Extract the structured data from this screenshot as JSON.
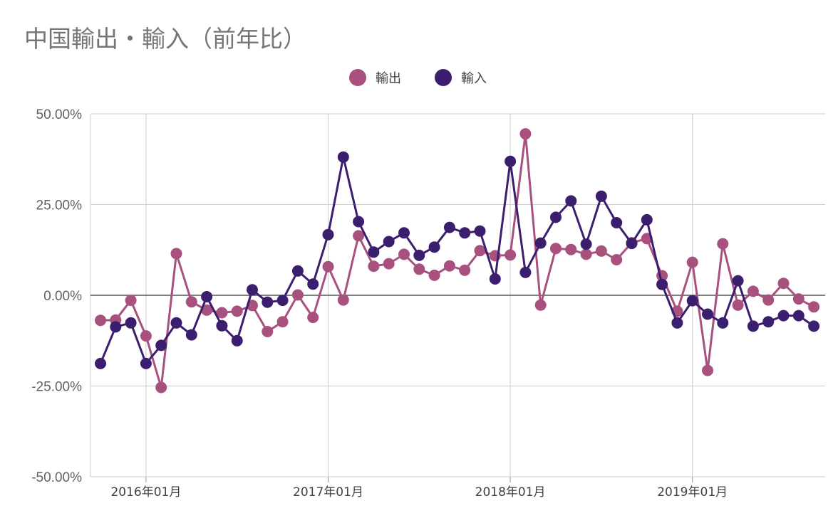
{
  "chart_data": {
    "type": "line",
    "title": "中国輸出・輸入（前年比）",
    "legend_position": "top",
    "grid": true,
    "ylim": [
      -50,
      50
    ],
    "y_ticks": [
      "50.00%",
      "25.00%",
      "0.00%",
      "-25.00%",
      "-50.00%"
    ],
    "y_tick_values": [
      50,
      25,
      0,
      -25,
      -50
    ],
    "x_ticks": [
      {
        "label": "2016年01月",
        "index": 3
      },
      {
        "label": "2017年01月",
        "index": 15
      },
      {
        "label": "2018年01月",
        "index": 27
      },
      {
        "label": "2019年01月",
        "index": 39
      }
    ],
    "categories": [
      "2015-10",
      "2015-11",
      "2015-12",
      "2016-01",
      "2016-02",
      "2016-03",
      "2016-04",
      "2016-05",
      "2016-06",
      "2016-07",
      "2016-08",
      "2016-09",
      "2016-10",
      "2016-11",
      "2016-12",
      "2017-01",
      "2017-02",
      "2017-03",
      "2017-04",
      "2017-05",
      "2017-06",
      "2017-07",
      "2017-08",
      "2017-09",
      "2017-10",
      "2017-11",
      "2017-12",
      "2018-01",
      "2018-02",
      "2018-03",
      "2018-04",
      "2018-05",
      "2018-06",
      "2018-07",
      "2018-08",
      "2018-09",
      "2018-10",
      "2018-11",
      "2018-12",
      "2019-01",
      "2019-02",
      "2019-03",
      "2019-04",
      "2019-05",
      "2019-06",
      "2019-07",
      "2019-08",
      "2019-09"
    ],
    "series": [
      {
        "name": "輸出",
        "color": "#a8507e",
        "values": [
          -6.9,
          -6.8,
          -1.4,
          -11.2,
          -25.4,
          11.5,
          -1.8,
          -4.1,
          -4.8,
          -4.4,
          -2.8,
          -10.0,
          -7.3,
          0.1,
          -6.1,
          7.9,
          -1.3,
          16.4,
          8.0,
          8.7,
          11.3,
          7.2,
          5.5,
          8.1,
          6.9,
          12.3,
          10.9,
          11.1,
          44.5,
          -2.7,
          12.9,
          12.6,
          11.3,
          12.2,
          9.8,
          14.5,
          15.6,
          5.4,
          -4.4,
          9.1,
          -20.7,
          14.2,
          -2.7,
          1.1,
          -1.3,
          3.3,
          -1.0,
          -3.2
        ]
      },
      {
        "name": "輸入",
        "color": "#3b1f6e",
        "values": [
          -18.8,
          -8.7,
          -7.6,
          -18.8,
          -13.8,
          -7.6,
          -10.9,
          -0.4,
          -8.4,
          -12.5,
          1.5,
          -1.9,
          -1.4,
          6.7,
          3.1,
          16.7,
          38.1,
          20.3,
          11.9,
          14.8,
          17.2,
          11.0,
          13.3,
          18.7,
          17.2,
          17.7,
          4.5,
          36.9,
          6.3,
          14.4,
          21.5,
          26.0,
          14.1,
          27.3,
          20.0,
          14.3,
          20.8,
          3.0,
          -7.6,
          -1.5,
          -5.2,
          -7.6,
          4.0,
          -8.5,
          -7.3,
          -5.6,
          -5.6,
          -8.5
        ]
      }
    ]
  }
}
